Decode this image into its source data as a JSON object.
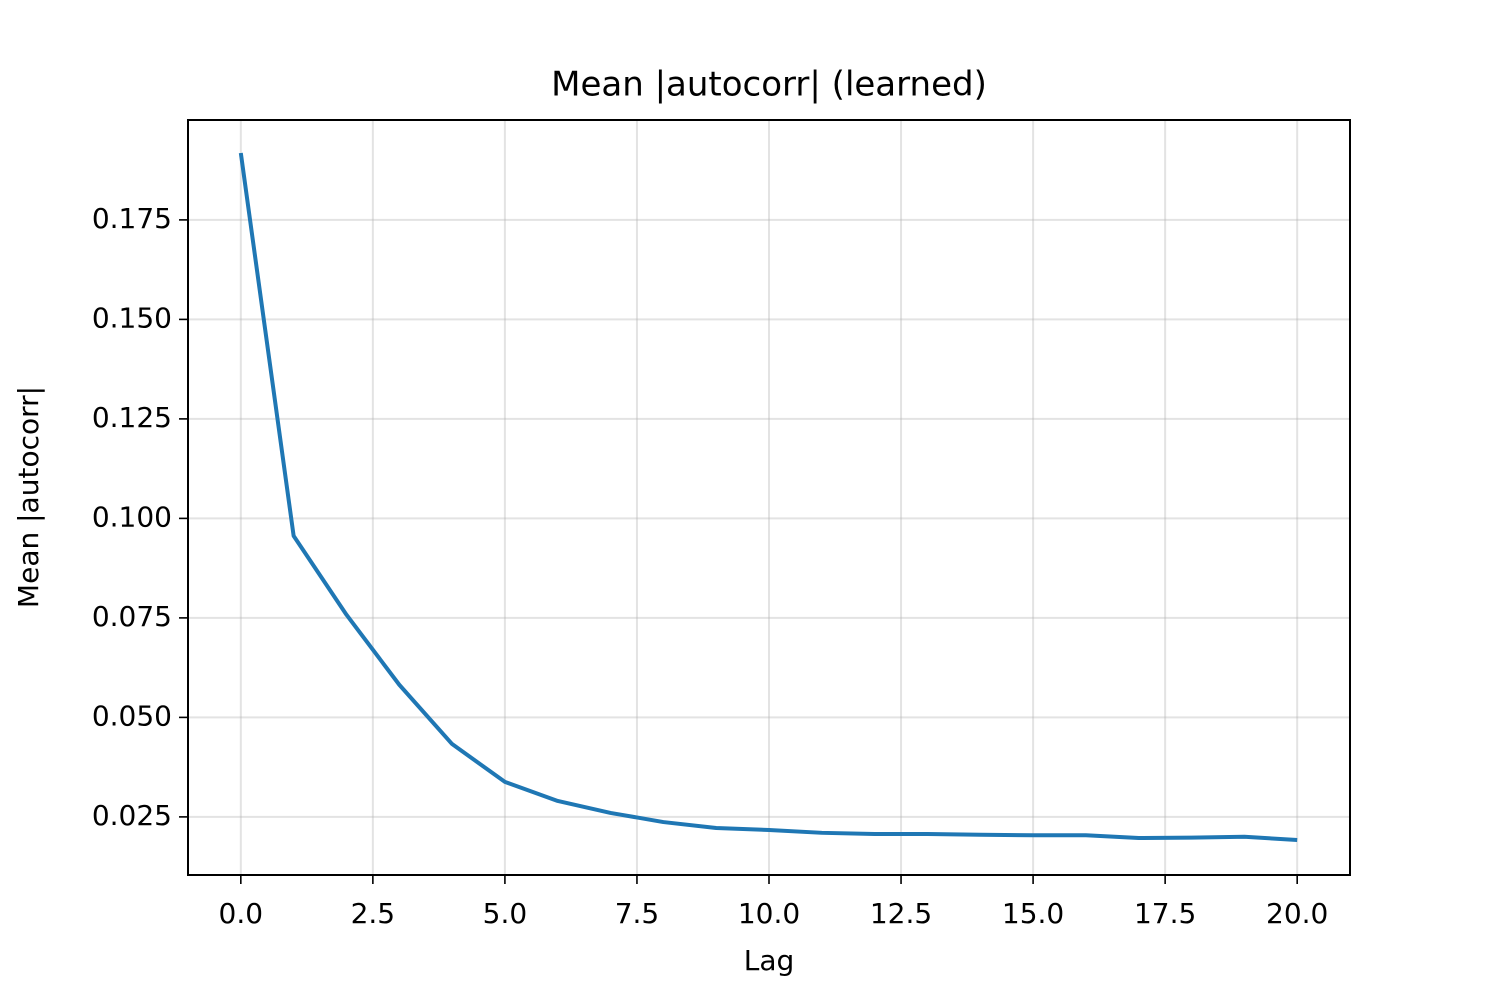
{
  "chart_data": {
    "type": "line",
    "title": "Mean |autocorr| (learned)",
    "xlabel": "Lag",
    "ylabel": "Mean |autocorr|",
    "x": [
      0,
      1,
      2,
      3,
      4,
      5,
      6,
      7,
      8,
      9,
      10,
      11,
      12,
      13,
      14,
      15,
      16,
      17,
      18,
      19,
      20
    ],
    "series": [
      {
        "name": "Mean |autocorr|",
        "color": "#1f77b4",
        "values": [
          0.1918,
          0.0956,
          0.0758,
          0.0582,
          0.0433,
          0.0338,
          0.029,
          0.026,
          0.0237,
          0.0222,
          0.0217,
          0.021,
          0.0207,
          0.0207,
          0.0205,
          0.0204,
          0.0204,
          0.0197,
          0.0198,
          0.02,
          0.0192
        ]
      }
    ],
    "xlim": [
      -1,
      21
    ],
    "ylim": [
      0.0104,
      0.2001
    ],
    "xticks": [
      {
        "value": 0,
        "label": "0.0"
      },
      {
        "value": 2.5,
        "label": "2.5"
      },
      {
        "value": 5,
        "label": "5.0"
      },
      {
        "value": 7.5,
        "label": "7.5"
      },
      {
        "value": 10,
        "label": "10.0"
      },
      {
        "value": 12.5,
        "label": "12.5"
      },
      {
        "value": 15,
        "label": "15.0"
      },
      {
        "value": 17.5,
        "label": "17.5"
      },
      {
        "value": 20,
        "label": "20.0"
      }
    ],
    "yticks": [
      0.025,
      {
        "value": 0.05,
        "label": "0.050"
      },
      0.075,
      {
        "value": 0.1,
        "label": "0.100"
      },
      0.125,
      {
        "value": 0.15,
        "label": "0.150"
      },
      0.175
    ],
    "grid": true
  }
}
